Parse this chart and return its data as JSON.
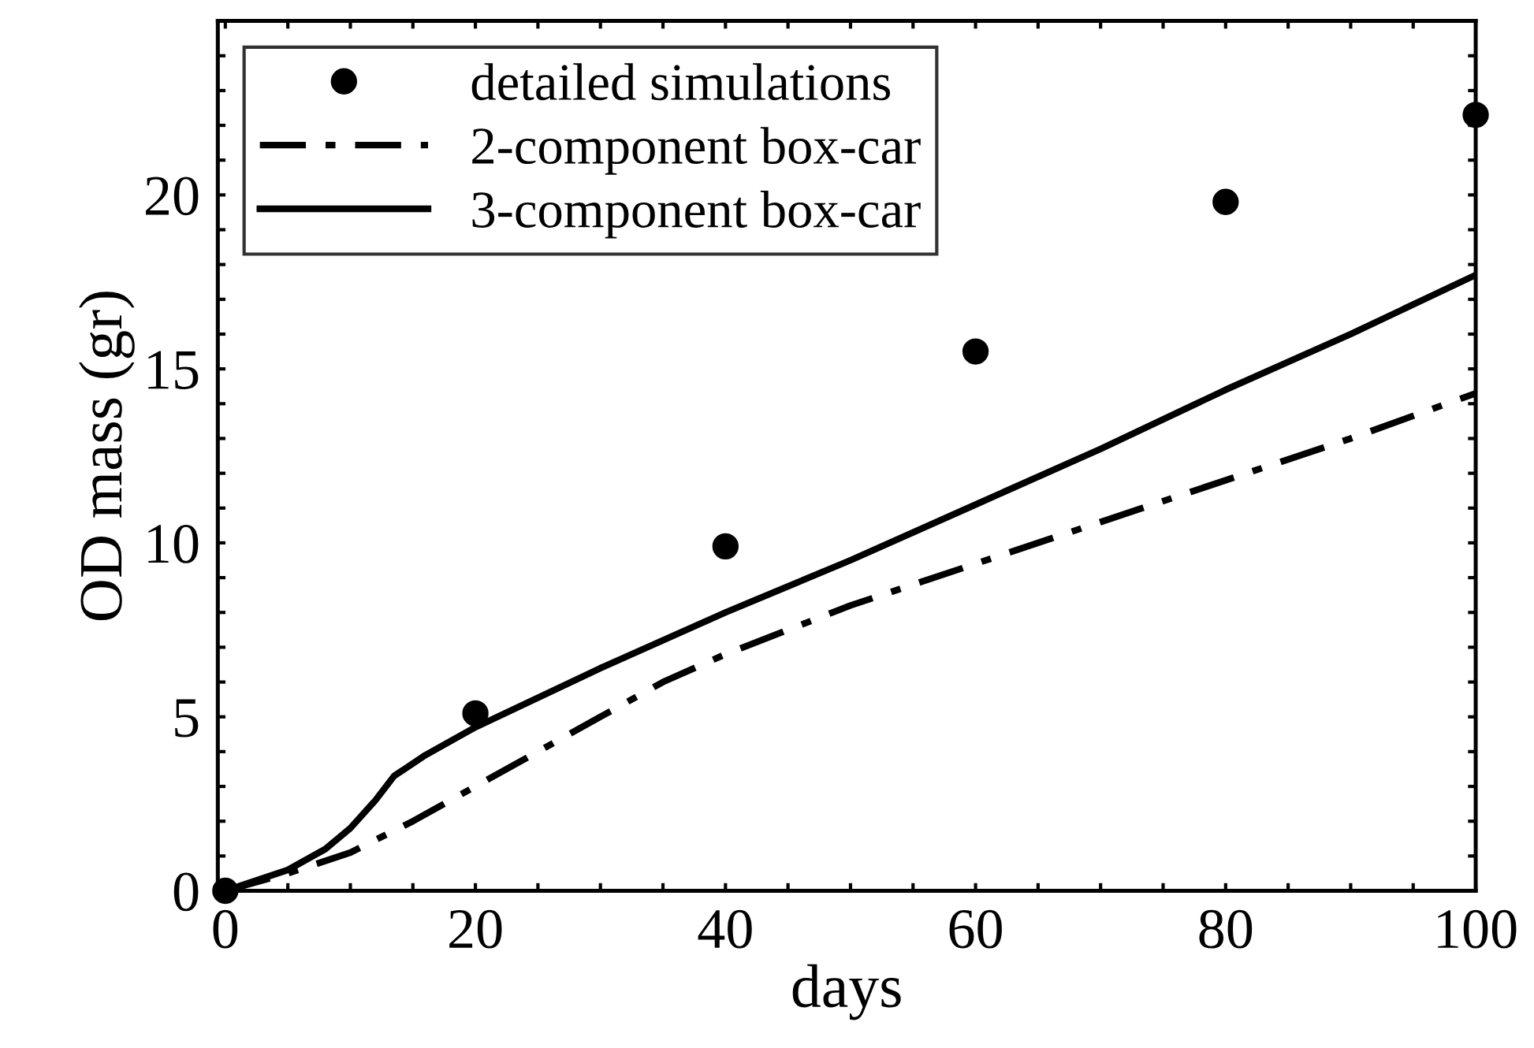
{
  "chart_data": {
    "type": "line",
    "xlabel": "days",
    "ylabel": "OD mass (gr)",
    "xlim": [
      -0.6,
      100
    ],
    "ylim": [
      0,
      25
    ],
    "xticks": [
      0,
      {
        "value": 5,
        "label": null
      },
      {
        "value": 10,
        "label": null
      },
      {
        "value": 15,
        "label": null
      },
      20,
      {
        "value": 25,
        "label": null
      },
      {
        "value": 30,
        "label": null
      },
      {
        "value": 35,
        "label": null
      },
      40,
      {
        "value": 45,
        "label": null
      },
      {
        "value": 50,
        "label": null
      },
      {
        "value": 55,
        "label": null
      },
      60,
      {
        "value": 65,
        "label": null
      },
      {
        "value": 70,
        "label": null
      },
      {
        "value": 75,
        "label": null
      },
      80,
      {
        "value": 85,
        "label": null
      },
      {
        "value": 90,
        "label": null
      },
      {
        "value": 95,
        "label": null
      },
      100
    ],
    "yticks": [
      0,
      {
        "value": 1,
        "label": null
      },
      {
        "value": 2,
        "label": null
      },
      {
        "value": 3,
        "label": null
      },
      {
        "value": 4,
        "label": null
      },
      5,
      {
        "value": 6,
        "label": null
      },
      {
        "value": 7,
        "label": null
      },
      {
        "value": 8,
        "label": null
      },
      {
        "value": 9,
        "label": null
      },
      10,
      {
        "value": 11,
        "label": null
      },
      {
        "value": 12,
        "label": null
      },
      {
        "value": 13,
        "label": null
      },
      {
        "value": 14,
        "label": null
      },
      15,
      {
        "value": 16,
        "label": null
      },
      {
        "value": 17,
        "label": null
      },
      {
        "value": 18,
        "label": null
      },
      {
        "value": 19,
        "label": null
      },
      20,
      {
        "value": 21,
        "label": null
      },
      {
        "value": 22,
        "label": null
      },
      {
        "value": 23,
        "label": null
      },
      {
        "value": 24,
        "label": null
      },
      {
        "value": 25,
        "label": null
      }
    ],
    "grid": false,
    "legend": "top left",
    "series": [
      {
        "name": "detailed simulations",
        "type": "scatter",
        "marker": "circle",
        "color": "#000000",
        "x": [
          0,
          20,
          40,
          60,
          80,
          100
        ],
        "values": [
          0,
          5.1,
          9.9,
          15.5,
          19.8,
          22.3
        ]
      },
      {
        "name": "2-component box-car",
        "type": "line",
        "line_style": "dashdot",
        "color": "#000000",
        "x": [
          0,
          5,
          10,
          15,
          20,
          25,
          30,
          35,
          40,
          50,
          60,
          70,
          80,
          90,
          100
        ],
        "values": [
          0,
          0.5,
          1.1,
          2.0,
          3.0,
          4.0,
          5.0,
          6.0,
          6.8,
          8.2,
          9.4,
          10.6,
          11.8,
          13.0,
          14.3
        ]
      },
      {
        "name": "3-component box-car",
        "line_style": "solid",
        "color": "#000000",
        "x": [
          0,
          5,
          8,
          10,
          12,
          13.5,
          16,
          20,
          30,
          40,
          50,
          60,
          70,
          80,
          90,
          100
        ],
        "values": [
          0,
          0.6,
          1.2,
          1.8,
          2.6,
          3.3,
          3.9,
          4.7,
          6.4,
          8.0,
          9.5,
          11.1,
          12.7,
          14.4,
          16.0,
          17.7
        ]
      }
    ]
  }
}
